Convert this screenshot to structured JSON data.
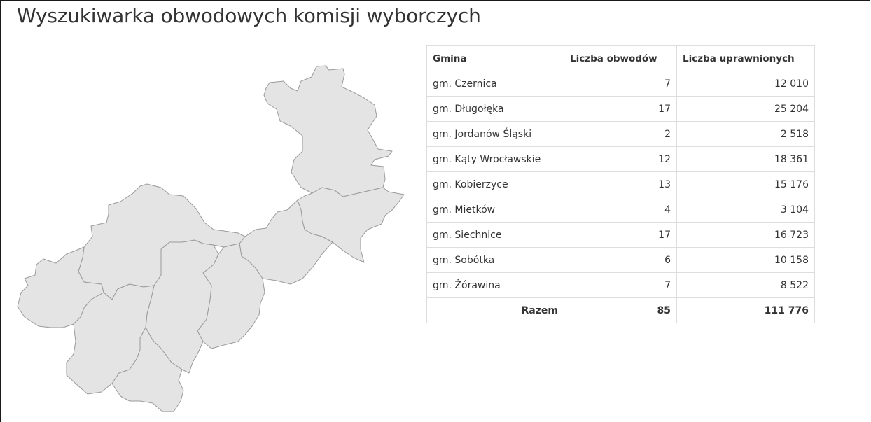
{
  "page": {
    "title": "Wyszukiwarka obwodowych komisji wyborczych"
  },
  "map": {
    "regions": [
      "gm. Długołęka",
      "gm. Czernica",
      "gm. Siechnice",
      "gm. Kobierzyce",
      "gm. Kąty Wrocławskie",
      "gm. Mietków",
      "gm. Sobótka",
      "gm. Jordanów Śląski",
      "gm. Żórawina"
    ],
    "fill_color": "#e4e4e4",
    "stroke_color": "#9a9a9a"
  },
  "table": {
    "headers": [
      "Gmina",
      "Liczba obwodów",
      "Liczba uprawnionych"
    ],
    "rows": [
      {
        "gmina": "gm. Czernica",
        "obwody": "7",
        "uprawnieni": "12 010"
      },
      {
        "gmina": "gm. Długołęka",
        "obwody": "17",
        "uprawnieni": "25 204"
      },
      {
        "gmina": "gm. Jordanów Śląski",
        "obwody": "2",
        "uprawnieni": "2 518"
      },
      {
        "gmina": "gm. Kąty Wrocławskie",
        "obwody": "12",
        "uprawnieni": "18 361"
      },
      {
        "gmina": "gm. Kobierzyce",
        "obwody": "13",
        "uprawnieni": "15 176"
      },
      {
        "gmina": "gm. Mietków",
        "obwody": "4",
        "uprawnieni": "3 104"
      },
      {
        "gmina": "gm. Siechnice",
        "obwody": "17",
        "uprawnieni": "16 723"
      },
      {
        "gmina": "gm. Sobótka",
        "obwody": "6",
        "uprawnieni": "10 158"
      },
      {
        "gmina": "gm. Żórawina",
        "obwody": "7",
        "uprawnieni": "8 522"
      }
    ],
    "total": {
      "label": "Razem",
      "obwody": "85",
      "uprawnieni": "111 776"
    }
  }
}
